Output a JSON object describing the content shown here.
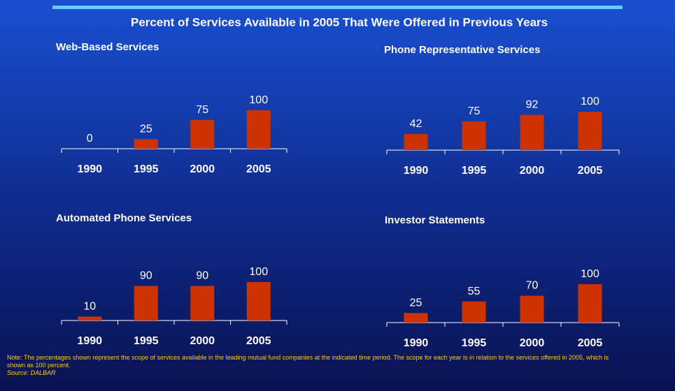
{
  "title": "Percent of Services Available in 2005 That Were Offered in Previous Years",
  "note": "Note: The percentages shown represent the scope of services available in the leading mutual fund companies at the indicated time period.  The scope for each year is in relation to the services offered in 2005, which is shown as 100 percent.",
  "source": "Source: DALBAR",
  "chart_data": [
    {
      "type": "bar",
      "title": "Web-Based Services",
      "categories": [
        "1990",
        "1995",
        "2000",
        "2005"
      ],
      "values": [
        0,
        25,
        75,
        100
      ],
      "color": "#cc3300",
      "ylim": [
        0,
        100
      ]
    },
    {
      "type": "bar",
      "title": "Phone Representative Services",
      "categories": [
        "1990",
        "1995",
        "2000",
        "2005"
      ],
      "values": [
        42,
        75,
        92,
        100
      ],
      "color": "#cc3300",
      "ylim": [
        0,
        100
      ]
    },
    {
      "type": "bar",
      "title": "Automated Phone Services",
      "categories": [
        "1990",
        "1995",
        "2000",
        "2005"
      ],
      "values": [
        10,
        90,
        90,
        100
      ],
      "color": "#cc3300",
      "ylim": [
        0,
        100
      ]
    },
    {
      "type": "bar",
      "title": "Investor Statements",
      "categories": [
        "1990",
        "1995",
        "2000",
        "2005"
      ],
      "values": [
        25,
        55,
        70,
        100
      ],
      "color": "#cc3300",
      "ylim": [
        0,
        100
      ]
    }
  ]
}
